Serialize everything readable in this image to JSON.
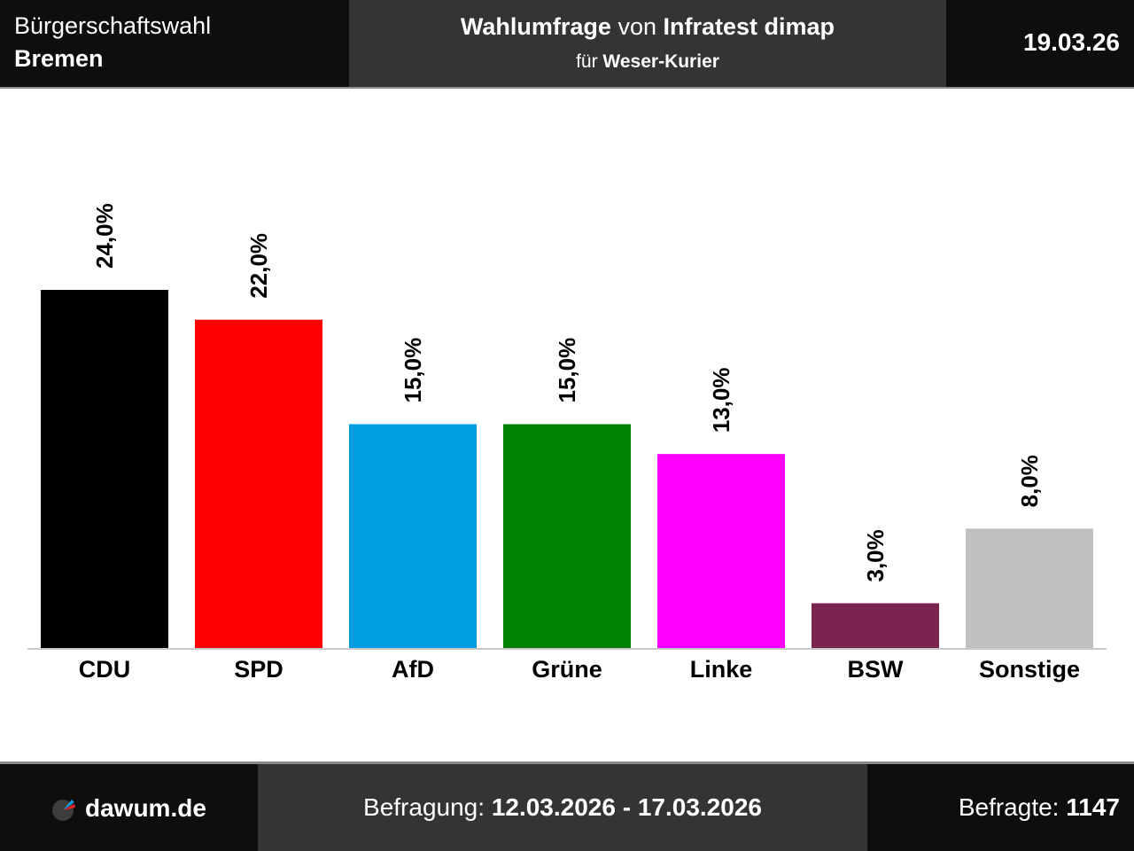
{
  "header": {
    "election": "Bürgerschaftswahl",
    "region": "Bremen",
    "title_bold": "Wahlumfrage",
    "title_mid": "von",
    "institute": "Infratest dimap",
    "client_prefix": "für",
    "client": "Weser-Kurier",
    "date": "19.03.26"
  },
  "footer": {
    "brand": "dawum.de",
    "period_label": "Befragung:",
    "period_value": "12.03.2026 - 17.03.2026",
    "sample_label": "Befragte:",
    "sample_value": "1147"
  },
  "chart_data": {
    "type": "bar",
    "title": "Wahlumfrage von Infratest dimap",
    "xlabel": "",
    "ylabel": "",
    "ylim": [
      0,
      24
    ],
    "grid": false,
    "categories": [
      "CDU",
      "SPD",
      "AfD",
      "Grüne",
      "Linke",
      "BSW",
      "Sonstige"
    ],
    "values": [
      24.0,
      22.0,
      15.0,
      15.0,
      13.0,
      3.0,
      8.0
    ],
    "value_labels": [
      "24,0%",
      "22,0%",
      "15,0%",
      "15,0%",
      "13,0%",
      "3,0%",
      "8,0%"
    ],
    "colors": [
      "#000000",
      "#ff0000",
      "#009ee0",
      "#008000",
      "#ff00ff",
      "#7b2450",
      "#c0c0c0"
    ],
    "axis_color": "#c8c8c8"
  }
}
